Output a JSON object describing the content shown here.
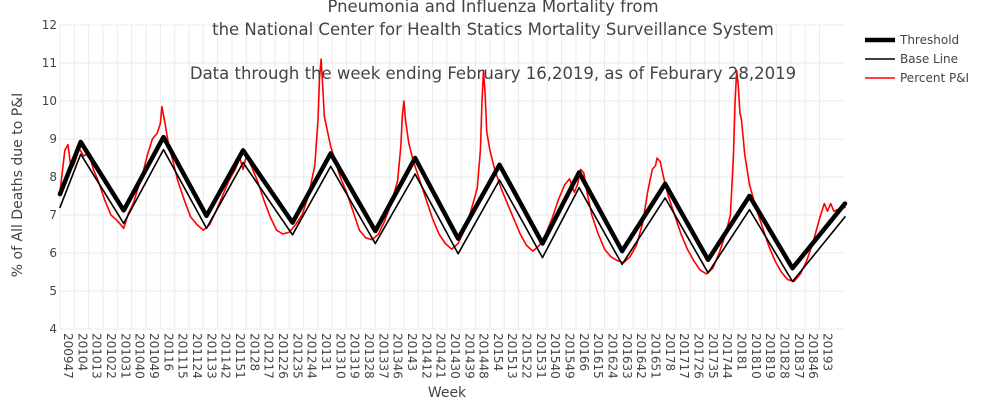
{
  "chart_data": {
    "type": "line",
    "title_lines": [
      "Pneumonia and Influenza Mortality from",
      "the National Center for Health Statics Mortality Surveillance System"
    ],
    "subtitle": "Data through the week ending February 16,2019, as of Feburary 28,2019",
    "xlabel": "Week",
    "ylabel": "% of All Deaths due to P&I",
    "ylim": [
      4,
      12
    ],
    "yticks": [
      "4",
      "5",
      "6",
      "7",
      "8",
      "9",
      "10",
      "11",
      "12"
    ],
    "x_index_range": [
      0,
      493
    ],
    "x_ticks": [
      {
        "label": "200947",
        "index": 0
      },
      {
        "label": "20104",
        "index": 9
      },
      {
        "label": "201013",
        "index": 18
      },
      {
        "label": "201022",
        "index": 27
      },
      {
        "label": "201031",
        "index": 36
      },
      {
        "label": "201040",
        "index": 45
      },
      {
        "label": "201049",
        "index": 54
      },
      {
        "label": "20116",
        "index": 63
      },
      {
        "label": "201115",
        "index": 72
      },
      {
        "label": "201124",
        "index": 81
      },
      {
        "label": "201133",
        "index": 90
      },
      {
        "label": "201142",
        "index": 99
      },
      {
        "label": "201151",
        "index": 108
      },
      {
        "label": "20128",
        "index": 117
      },
      {
        "label": "201217",
        "index": 126
      },
      {
        "label": "201226",
        "index": 135
      },
      {
        "label": "201235",
        "index": 144
      },
      {
        "label": "201244",
        "index": 153
      },
      {
        "label": "20131",
        "index": 162
      },
      {
        "label": "201310",
        "index": 171
      },
      {
        "label": "201319",
        "index": 180
      },
      {
        "label": "201328",
        "index": 189
      },
      {
        "label": "201337",
        "index": 198
      },
      {
        "label": "201346",
        "index": 207
      },
      {
        "label": "20143",
        "index": 216
      },
      {
        "label": "201412",
        "index": 225
      },
      {
        "label": "201421",
        "index": 234
      },
      {
        "label": "201430",
        "index": 243
      },
      {
        "label": "201439",
        "index": 252
      },
      {
        "label": "201448",
        "index": 261
      },
      {
        "label": "20154",
        "index": 270
      },
      {
        "label": "201513",
        "index": 279
      },
      {
        "label": "201522",
        "index": 288
      },
      {
        "label": "201531",
        "index": 297
      },
      {
        "label": "201540",
        "index": 306
      },
      {
        "label": "201549",
        "index": 315
      },
      {
        "label": "20166",
        "index": 324
      },
      {
        "label": "201615",
        "index": 333
      },
      {
        "label": "201624",
        "index": 342
      },
      {
        "label": "201633",
        "index": 351
      },
      {
        "label": "201642",
        "index": 360
      },
      {
        "label": "201651",
        "index": 369
      },
      {
        "label": "20178",
        "index": 378
      },
      {
        "label": "201717",
        "index": 387
      },
      {
        "label": "201726",
        "index": 396
      },
      {
        "label": "201735",
        "index": 405
      },
      {
        "label": "201744",
        "index": 414
      },
      {
        "label": "20181",
        "index": 423
      },
      {
        "label": "201810",
        "index": 432
      },
      {
        "label": "201819",
        "index": 441
      },
      {
        "label": "201828",
        "index": 450
      },
      {
        "label": "201837",
        "index": 459
      },
      {
        "label": "201846",
        "index": 468
      },
      {
        "label": "20193",
        "index": 477
      }
    ],
    "series": [
      {
        "name": "Threshold",
        "color": "#000000",
        "style": "thick",
        "points": [
          [
            0,
            7.55
          ],
          [
            13,
            8.92
          ],
          [
            40,
            7.12
          ],
          [
            65,
            9.05
          ],
          [
            92,
            6.98
          ],
          [
            115,
            8.7
          ],
          [
            146,
            6.8
          ],
          [
            170,
            8.62
          ],
          [
            198,
            6.58
          ],
          [
            223,
            8.5
          ],
          [
            250,
            6.38
          ],
          [
            276,
            8.32
          ],
          [
            303,
            6.25
          ],
          [
            326,
            8.12
          ],
          [
            353,
            6.05
          ],
          [
            380,
            7.82
          ],
          [
            407,
            5.82
          ],
          [
            433,
            7.5
          ],
          [
            460,
            5.6
          ],
          [
            493,
            7.3
          ]
        ]
      },
      {
        "name": "Base Line",
        "color": "#000000",
        "style": "thin",
        "points": [
          [
            0,
            7.2
          ],
          [
            13,
            8.6
          ],
          [
            40,
            6.78
          ],
          [
            65,
            8.72
          ],
          [
            92,
            6.65
          ],
          [
            115,
            8.38
          ],
          [
            146,
            6.48
          ],
          [
            170,
            8.28
          ],
          [
            198,
            6.25
          ],
          [
            223,
            8.08
          ],
          [
            250,
            5.98
          ],
          [
            276,
            7.92
          ],
          [
            303,
            5.88
          ],
          [
            326,
            7.72
          ],
          [
            353,
            5.7
          ],
          [
            380,
            7.45
          ],
          [
            407,
            5.48
          ],
          [
            433,
            7.14
          ],
          [
            460,
            5.25
          ],
          [
            493,
            6.95
          ]
        ]
      },
      {
        "name": "Percent P&I",
        "color": "#ff0000",
        "style": "thin",
        "points": [
          [
            0,
            7.6
          ],
          [
            3,
            8.7
          ],
          [
            5,
            8.85
          ],
          [
            7,
            8.2
          ],
          [
            9,
            8.35
          ],
          [
            12,
            8.75
          ],
          [
            15,
            8.55
          ],
          [
            18,
            8.65
          ],
          [
            21,
            8.2
          ],
          [
            24,
            7.9
          ],
          [
            28,
            7.4
          ],
          [
            32,
            7.0
          ],
          [
            36,
            6.85
          ],
          [
            40,
            6.65
          ],
          [
            43,
            7.05
          ],
          [
            46,
            7.3
          ],
          [
            49,
            7.7
          ],
          [
            52,
            8.1
          ],
          [
            55,
            8.6
          ],
          [
            58,
            9.0
          ],
          [
            61,
            9.15
          ],
          [
            63,
            9.4
          ],
          [
            64,
            9.85
          ],
          [
            66,
            9.4
          ],
          [
            68,
            8.9
          ],
          [
            71,
            8.4
          ],
          [
            74,
            7.9
          ],
          [
            78,
            7.4
          ],
          [
            82,
            6.95
          ],
          [
            86,
            6.75
          ],
          [
            90,
            6.6
          ],
          [
            94,
            6.75
          ],
          [
            98,
            7.1
          ],
          [
            102,
            7.5
          ],
          [
            106,
            7.9
          ],
          [
            110,
            8.2
          ],
          [
            113,
            8.5
          ],
          [
            115,
            8.2
          ],
          [
            117,
            8.55
          ],
          [
            120,
            8.3
          ],
          [
            124,
            7.9
          ],
          [
            128,
            7.4
          ],
          [
            132,
            6.95
          ],
          [
            136,
            6.6
          ],
          [
            140,
            6.5
          ],
          [
            144,
            6.55
          ],
          [
            148,
            6.75
          ],
          [
            152,
            7.0
          ],
          [
            156,
            7.5
          ],
          [
            160,
            8.3
          ],
          [
            162,
            9.5
          ],
          [
            163,
            10.6
          ],
          [
            164,
            11.1
          ],
          [
            165,
            10.4
          ],
          [
            166,
            9.6
          ],
          [
            168,
            9.2
          ],
          [
            170,
            8.8
          ],
          [
            173,
            8.4
          ],
          [
            176,
            8.0
          ],
          [
            180,
            7.6
          ],
          [
            184,
            7.1
          ],
          [
            188,
            6.6
          ],
          [
            192,
            6.4
          ],
          [
            196,
            6.35
          ],
          [
            200,
            6.5
          ],
          [
            204,
            6.85
          ],
          [
            208,
            7.3
          ],
          [
            212,
            7.9
          ],
          [
            214,
            8.8
          ],
          [
            215,
            9.6
          ],
          [
            216,
            10.0
          ],
          [
            217,
            9.5
          ],
          [
            219,
            8.9
          ],
          [
            222,
            8.4
          ],
          [
            226,
            7.9
          ],
          [
            230,
            7.4
          ],
          [
            234,
            6.9
          ],
          [
            238,
            6.5
          ],
          [
            242,
            6.25
          ],
          [
            246,
            6.1
          ],
          [
            250,
            6.25
          ],
          [
            254,
            6.6
          ],
          [
            258,
            7.1
          ],
          [
            262,
            7.7
          ],
          [
            264,
            8.7
          ],
          [
            265,
            10.0
          ],
          [
            266,
            10.8
          ],
          [
            267,
            10.2
          ],
          [
            268,
            9.2
          ],
          [
            270,
            8.7
          ],
          [
            273,
            8.2
          ],
          [
            277,
            7.7
          ],
          [
            281,
            7.3
          ],
          [
            285,
            6.9
          ],
          [
            289,
            6.5
          ],
          [
            293,
            6.2
          ],
          [
            297,
            6.05
          ],
          [
            301,
            6.2
          ],
          [
            305,
            6.5
          ],
          [
            309,
            6.9
          ],
          [
            313,
            7.4
          ],
          [
            317,
            7.8
          ],
          [
            320,
            7.95
          ],
          [
            323,
            7.6
          ],
          [
            325,
            7.8
          ],
          [
            327,
            8.2
          ],
          [
            329,
            8.1
          ],
          [
            331,
            7.6
          ],
          [
            334,
            7.0
          ],
          [
            338,
            6.5
          ],
          [
            342,
            6.1
          ],
          [
            346,
            5.9
          ],
          [
            350,
            5.8
          ],
          [
            354,
            5.75
          ],
          [
            358,
            5.9
          ],
          [
            362,
            6.2
          ],
          [
            366,
            6.8
          ],
          [
            369,
            7.6
          ],
          [
            372,
            8.2
          ],
          [
            374,
            8.3
          ],
          [
            375,
            8.5
          ],
          [
            377,
            8.4
          ],
          [
            379,
            8.0
          ],
          [
            382,
            7.5
          ],
          [
            386,
            7.0
          ],
          [
            390,
            6.5
          ],
          [
            394,
            6.1
          ],
          [
            398,
            5.8
          ],
          [
            402,
            5.55
          ],
          [
            406,
            5.45
          ],
          [
            410,
            5.6
          ],
          [
            414,
            6.0
          ],
          [
            418,
            6.5
          ],
          [
            421,
            7.0
          ],
          [
            423,
            8.6
          ],
          [
            424,
            10.0
          ],
          [
            425,
            10.8
          ],
          [
            426,
            10.4
          ],
          [
            427,
            9.7
          ],
          [
            428,
            9.5
          ],
          [
            430,
            8.6
          ],
          [
            433,
            7.8
          ],
          [
            437,
            7.2
          ],
          [
            441,
            6.7
          ],
          [
            445,
            6.2
          ],
          [
            449,
            5.8
          ],
          [
            453,
            5.5
          ],
          [
            457,
            5.3
          ],
          [
            461,
            5.25
          ],
          [
            465,
            5.45
          ],
          [
            469,
            5.8
          ],
          [
            473,
            6.3
          ],
          [
            477,
            6.9
          ],
          [
            480,
            7.3
          ],
          [
            482,
            7.1
          ],
          [
            484,
            7.3
          ],
          [
            486,
            7.1
          ],
          [
            489,
            7.15
          ],
          [
            493,
            7.2
          ]
        ]
      }
    ],
    "legend": [
      "Threshold",
      "Base Line",
      "Percent P&I"
    ],
    "legend_position": "top-right",
    "grid": true
  }
}
